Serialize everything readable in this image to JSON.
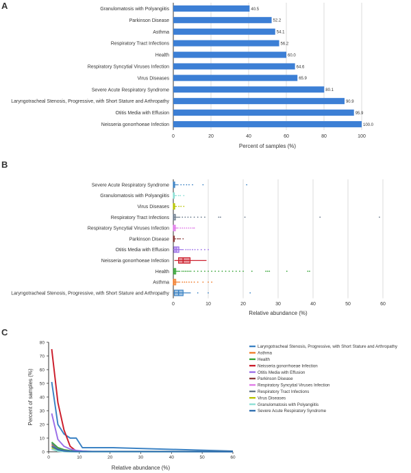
{
  "colors": {
    "bar": "#3c7fd5",
    "grid": "#cccccc",
    "axis": "#333333",
    "text": "#333333"
  },
  "chart_data": [
    {
      "panel": "A",
      "type": "bar",
      "orientation": "horizontal",
      "categories": [
        "Granulomatosis with Polyangiitis",
        "Parkinson Disease",
        "Asthma",
        "Respiratory Tract Infections",
        "Health",
        "Respiratory Syncytial Viruses Infection",
        "Virus Diseases",
        "Severe Acute Respiratory Syndrome",
        "Laryngotracheal Stenosis, Progressive, with Short Stature and Arthropathy",
        "Otitis Media with Effusion",
        "Neisseria gonorrhoeae Infection"
      ],
      "values": [
        40.5,
        52.2,
        54.1,
        56.2,
        60.0,
        64.6,
        65.9,
        80.1,
        90.9,
        95.9,
        100.0
      ],
      "value_labels": [
        "40.5",
        "52.2",
        "54.1",
        "56.2",
        "60.0",
        "64.6",
        "65.9",
        "80.1",
        "90.9",
        "95.9",
        "100.0"
      ],
      "xlabel": "Percent of samples (%)",
      "xlim": [
        0,
        100
      ],
      "xticks": [
        "0",
        "20",
        "40",
        "60",
        "80",
        "100"
      ],
      "grid": true
    },
    {
      "panel": "B",
      "type": "box",
      "orientation": "horizontal",
      "categories": [
        "Severe Acute Respiratory Syndrome",
        "Granulomatosis with Polyangiitis",
        "Virus Diseases",
        "Respiratory Tract Infections",
        "Respiratory Syncytial Viruses Infection",
        "Parkinson Disease",
        "Otitis Media with Effusion",
        "Neisseria gonorrhoeae Infection",
        "Health",
        "Asthma",
        "Laryngotracheal Stenosis, Progressive, with Short Stature and Arthropathy"
      ],
      "series": [
        {
          "name": "Severe Acute Respiratory Syndrome",
          "color": "#3b82c4",
          "min": 0,
          "q1": 0,
          "median": 0.1,
          "q3": 0.4,
          "max": 1.5,
          "outliers": [
            2.2,
            3.0,
            3.8,
            4.5,
            5.5,
            8.5,
            21.0
          ]
        },
        {
          "name": "Granulomatosis with Polyangiitis",
          "color": "#8ee0d6",
          "min": 0,
          "q1": 0,
          "median": 0.1,
          "q3": 0.3,
          "max": 1.0,
          "outliers": [
            1.5,
            2.0,
            3.0
          ]
        },
        {
          "name": "Virus Diseases",
          "color": "#b8c400",
          "min": 0,
          "q1": 0,
          "median": 0.1,
          "q3": 0.4,
          "max": 1.0,
          "outliers": [
            1.6,
            2.2,
            3.0
          ]
        },
        {
          "name": "Respiratory Tract Infections",
          "color": "#6a7a8c",
          "min": 0,
          "q1": 0,
          "median": 0.1,
          "q3": 0.6,
          "max": 2.0,
          "outliers": [
            2.6,
            3.4,
            4.2,
            5.0,
            6.0,
            7.0,
            8.0,
            9.0,
            13.0,
            13.5,
            20.5,
            42.0,
            59.0
          ]
        },
        {
          "name": "Respiratory Syncytial Viruses Infection",
          "color": "#e07be8",
          "min": 0,
          "q1": 0,
          "median": 0.2,
          "q3": 0.6,
          "max": 1.5,
          "outliers": [
            2.0,
            2.6,
            3.2,
            3.8,
            4.4,
            5.0,
            5.6,
            6.0
          ]
        },
        {
          "name": "Parkinson Disease",
          "color": "#8b3a3a",
          "min": 0,
          "q1": 0,
          "median": 0.1,
          "q3": 0.3,
          "max": 0.8,
          "outliers": [
            1.2,
            1.6,
            2.0,
            2.8
          ]
        },
        {
          "name": "Otitis Media with Effusion",
          "color": "#9b6fe8",
          "min": 0,
          "q1": 0.2,
          "median": 0.8,
          "q3": 1.6,
          "max": 3.0,
          "outliers": [
            3.6,
            4.2,
            4.8,
            5.5,
            6.2,
            7.0,
            8.0,
            9.0,
            10.0
          ]
        },
        {
          "name": "Neisseria gonorrhoeae Infection",
          "color": "#cc1f2d",
          "min": 0.3,
          "q1": 1.5,
          "median": 2.8,
          "q3": 4.8,
          "max": 9.5,
          "outliers": []
        },
        {
          "name": "Health",
          "color": "#3aa63a",
          "min": 0,
          "q1": 0.1,
          "median": 0.3,
          "q3": 0.7,
          "max": 2.0,
          "outliers": [
            2.5,
            3.0,
            3.5,
            4.0,
            4.5,
            5.0,
            6.0,
            7.0,
            8.0,
            9.0,
            10.0,
            11.0,
            12.0,
            13.0,
            14.0,
            15.0,
            16.0,
            17.0,
            18.0,
            19.0,
            20.0,
            22.5,
            26.5,
            27.0,
            27.5,
            32.5,
            38.5,
            39.0
          ]
        },
        {
          "name": "Asthma",
          "color": "#f07d2c",
          "min": 0,
          "q1": 0,
          "median": 0.2,
          "q3": 0.7,
          "max": 2.0,
          "outliers": [
            2.6,
            3.2,
            3.8,
            4.5,
            5.2,
            6.0,
            7.0,
            8.5,
            10.0,
            11.0
          ]
        },
        {
          "name": "Laryngotracheal Stenosis, Progressive, with Short Stature and Arthropathy",
          "color": "#3b82c4",
          "min": 0,
          "q1": 0.3,
          "median": 1.5,
          "q3": 2.8,
          "max": 5.0,
          "outliers": [
            7.0,
            10.0,
            22.0
          ]
        }
      ],
      "xlabel": "Relative abundance (%)",
      "xlim": [
        0,
        60
      ],
      "xticks": [
        "0",
        "10",
        "20",
        "30",
        "40",
        "50",
        "60"
      ],
      "grid": true
    },
    {
      "panel": "C",
      "type": "line",
      "x": [
        1,
        3,
        5,
        7,
        9,
        11,
        15,
        21,
        60
      ],
      "series": [
        {
          "name": "Laryngotracheal Stenosis, Progressive, with Short Stature and Arthropathy",
          "color": "#3b82c4",
          "values": [
            51,
            20,
            13,
            10,
            10,
            3,
            3,
            3,
            0.5
          ]
        },
        {
          "name": "Asthma",
          "color": "#f07d2c",
          "values": [
            5,
            2,
            1,
            0.5,
            0.4,
            0.3,
            0.2,
            0.2,
            0
          ]
        },
        {
          "name": "Health",
          "color": "#3aa63a",
          "values": [
            7,
            3,
            1.5,
            0.8,
            0.5,
            0.3,
            0.2,
            0.2,
            0
          ]
        },
        {
          "name": "Neisseria gonorrhoeae Infection",
          "color": "#cc1f2d",
          "values": [
            75,
            36,
            16,
            4,
            0.5,
            0,
            0,
            0,
            0
          ]
        },
        {
          "name": "Otitis Media with Effusion",
          "color": "#9b6fe8",
          "values": [
            28,
            9,
            4,
            2,
            1,
            0.5,
            0.2,
            0,
            0
          ]
        },
        {
          "name": "Parkinson Disease",
          "color": "#8b3a3a",
          "values": [
            2,
            0.5,
            0.2,
            0,
            0,
            0,
            0,
            0,
            0
          ]
        },
        {
          "name": "Respiratory Syncytial Viruses Infection",
          "color": "#e07be8",
          "values": [
            4,
            1.5,
            0.5,
            0.2,
            0,
            0,
            0,
            0,
            0
          ]
        },
        {
          "name": "Respiratory Tract Infections",
          "color": "#6a7a8c",
          "values": [
            6,
            2,
            1,
            0.5,
            0.3,
            0.2,
            0.2,
            0.2,
            0.2
          ]
        },
        {
          "name": "Virus Diseases",
          "color": "#b8c400",
          "values": [
            3,
            1,
            0.3,
            0,
            0,
            0,
            0,
            0,
            0
          ]
        },
        {
          "name": "Granulomatosis with Polyangiitis",
          "color": "#8ee0d6",
          "values": [
            2,
            0.5,
            0.2,
            0,
            0,
            0,
            0,
            0,
            0
          ]
        },
        {
          "name": "Severe Acute Respiratory Syndrome",
          "color": "#2f6fb0",
          "values": [
            4,
            1.5,
            0.6,
            0.3,
            0.2,
            0.2,
            0.2,
            0.2,
            0
          ]
        }
      ],
      "xlabel": "Relative abundance (%)",
      "ylabel": "Percent of samples (%)",
      "xlim": [
        0,
        60
      ],
      "ylim": [
        0,
        80
      ],
      "xticks": [
        "0",
        "10",
        "20",
        "30",
        "40",
        "50",
        "60"
      ],
      "yticks": [
        "0",
        "10",
        "20",
        "30",
        "40",
        "50",
        "60",
        "70",
        "80"
      ],
      "legend": "right"
    }
  ]
}
